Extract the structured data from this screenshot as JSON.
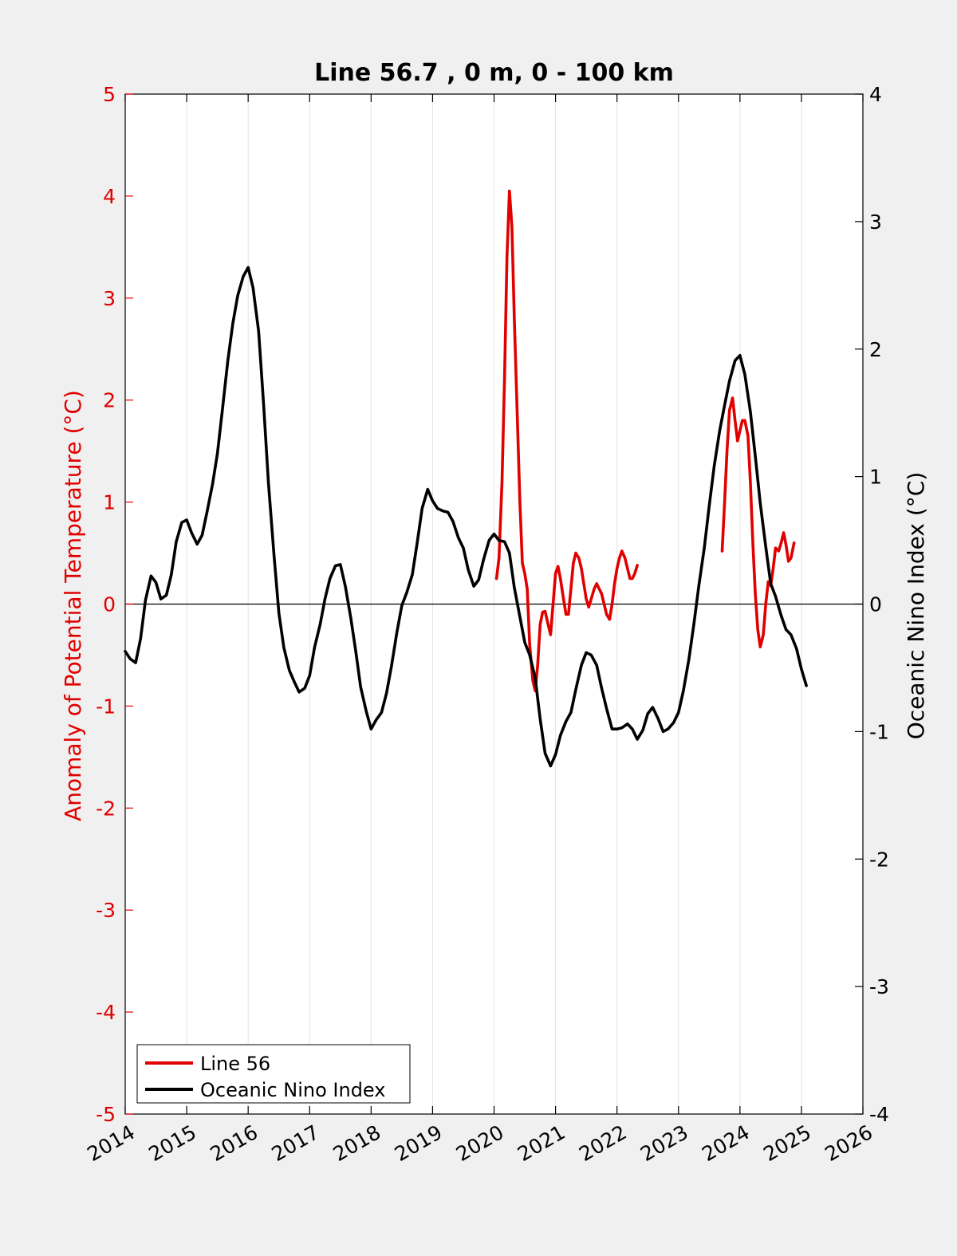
{
  "chart_data": {
    "type": "line",
    "title": "Line 56.7 , 0 m, 0 - 100 km",
    "xlim": [
      2014,
      2026
    ],
    "x_ticks": [
      "2014",
      "2015",
      "2016",
      "2017",
      "2018",
      "2019",
      "2020",
      "2021",
      "2022",
      "2023",
      "2024",
      "2025",
      "2026"
    ],
    "y_left": {
      "label": "Anomaly of Potential Temperature (°C)",
      "range": [
        -5,
        5
      ],
      "ticks": [
        "5",
        "4",
        "3",
        "2",
        "1",
        "0",
        "-1",
        "-2",
        "-3",
        "-4",
        "-5"
      ],
      "color": "#e00000"
    },
    "y_right": {
      "label": "Oceanic Nino Index (°C)",
      "range": [
        -4,
        4
      ],
      "ticks": [
        "4",
        "3",
        "2",
        "1",
        "0",
        "-1",
        "-2",
        "-3",
        "-4"
      ],
      "color": "#000000"
    },
    "grid": "vertical",
    "legend": {
      "position": "bottom-left",
      "entries": [
        {
          "name": "Line 56",
          "color": "#e00000"
        },
        {
          "name": "Oceanic Nino Index",
          "color": "#000000"
        }
      ]
    },
    "series": [
      {
        "name": "Line 56",
        "axis": "left",
        "color": "#e00000",
        "segments": [
          [
            [
              2020.04,
              0.25
            ],
            [
              2020.08,
              0.45
            ],
            [
              2020.13,
              1.2
            ],
            [
              2020.17,
              2.2
            ],
            [
              2020.21,
              3.4
            ],
            [
              2020.25,
              4.05
            ],
            [
              2020.29,
              3.7
            ],
            [
              2020.33,
              2.8
            ],
            [
              2020.38,
              1.8
            ],
            [
              2020.42,
              1.0
            ],
            [
              2020.46,
              0.4
            ],
            [
              2020.5,
              0.3
            ],
            [
              2020.54,
              0.15
            ],
            [
              2020.58,
              -0.4
            ],
            [
              2020.63,
              -0.75
            ],
            [
              2020.67,
              -0.85
            ],
            [
              2020.71,
              -0.6
            ],
            [
              2020.75,
              -0.2
            ],
            [
              2020.79,
              -0.08
            ],
            [
              2020.83,
              -0.07
            ],
            [
              2020.88,
              -0.2
            ],
            [
              2020.92,
              -0.3
            ],
            [
              2020.96,
              0.0
            ],
            [
              2021.0,
              0.3
            ],
            [
              2021.04,
              0.37
            ],
            [
              2021.08,
              0.25
            ],
            [
              2021.13,
              0.05
            ],
            [
              2021.17,
              -0.1
            ],
            [
              2021.21,
              -0.1
            ],
            [
              2021.25,
              0.15
            ],
            [
              2021.29,
              0.4
            ],
            [
              2021.33,
              0.5
            ],
            [
              2021.38,
              0.45
            ],
            [
              2021.42,
              0.35
            ],
            [
              2021.46,
              0.2
            ],
            [
              2021.5,
              0.05
            ],
            [
              2021.54,
              -0.03
            ],
            [
              2021.58,
              0.05
            ],
            [
              2021.63,
              0.15
            ],
            [
              2021.67,
              0.2
            ],
            [
              2021.71,
              0.15
            ],
            [
              2021.75,
              0.1
            ],
            [
              2021.79,
              0.0
            ],
            [
              2021.83,
              -0.1
            ],
            [
              2021.88,
              -0.15
            ],
            [
              2021.92,
              0.0
            ],
            [
              2021.96,
              0.2
            ],
            [
              2022.0,
              0.35
            ],
            [
              2022.04,
              0.45
            ],
            [
              2022.08,
              0.52
            ],
            [
              2022.13,
              0.45
            ],
            [
              2022.17,
              0.35
            ],
            [
              2022.21,
              0.25
            ],
            [
              2022.25,
              0.25
            ],
            [
              2022.29,
              0.3
            ],
            [
              2022.33,
              0.38
            ]
          ],
          [
            [
              2023.71,
              0.52
            ],
            [
              2023.75,
              1.0
            ],
            [
              2023.79,
              1.5
            ],
            [
              2023.83,
              1.9
            ],
            [
              2023.88,
              2.02
            ],
            [
              2023.92,
              1.8
            ],
            [
              2023.96,
              1.6
            ],
            [
              2024.0,
              1.7
            ],
            [
              2024.04,
              1.8
            ],
            [
              2024.08,
              1.8
            ],
            [
              2024.13,
              1.65
            ],
            [
              2024.17,
              1.2
            ],
            [
              2024.21,
              0.6
            ],
            [
              2024.25,
              0.1
            ],
            [
              2024.29,
              -0.25
            ],
            [
              2024.33,
              -0.42
            ],
            [
              2024.38,
              -0.3
            ],
            [
              2024.42,
              0.0
            ],
            [
              2024.46,
              0.22
            ],
            [
              2024.5,
              0.18
            ],
            [
              2024.54,
              0.35
            ],
            [
              2024.58,
              0.55
            ],
            [
              2024.63,
              0.52
            ],
            [
              2024.67,
              0.6
            ],
            [
              2024.71,
              0.7
            ],
            [
              2024.75,
              0.58
            ],
            [
              2024.79,
              0.42
            ],
            [
              2024.83,
              0.45
            ],
            [
              2024.88,
              0.6
            ]
          ]
        ]
      },
      {
        "name": "Oceanic Nino Index",
        "axis": "right",
        "color": "#000000",
        "segments": [
          [
            [
              2014.0,
              -0.37
            ],
            [
              2014.08,
              -0.43
            ],
            [
              2014.17,
              -0.46
            ],
            [
              2014.25,
              -0.27
            ],
            [
              2014.33,
              0.03
            ],
            [
              2014.42,
              0.22
            ],
            [
              2014.5,
              0.17
            ],
            [
              2014.58,
              0.04
            ],
            [
              2014.67,
              0.07
            ],
            [
              2014.75,
              0.23
            ],
            [
              2014.83,
              0.49
            ],
            [
              2014.92,
              0.64
            ],
            [
              2015.0,
              0.66
            ],
            [
              2015.08,
              0.56
            ],
            [
              2015.17,
              0.47
            ],
            [
              2015.25,
              0.54
            ],
            [
              2015.33,
              0.72
            ],
            [
              2015.42,
              0.94
            ],
            [
              2015.5,
              1.18
            ],
            [
              2015.58,
              1.52
            ],
            [
              2015.67,
              1.91
            ],
            [
              2015.75,
              2.2
            ],
            [
              2015.83,
              2.42
            ],
            [
              2015.92,
              2.57
            ],
            [
              2016.0,
              2.64
            ],
            [
              2016.08,
              2.48
            ],
            [
              2016.17,
              2.14
            ],
            [
              2016.25,
              1.58
            ],
            [
              2016.33,
              0.95
            ],
            [
              2016.42,
              0.39
            ],
            [
              2016.5,
              -0.07
            ],
            [
              2016.58,
              -0.34
            ],
            [
              2016.67,
              -0.52
            ],
            [
              2016.75,
              -0.61
            ],
            [
              2016.83,
              -0.69
            ],
            [
              2016.92,
              -0.66
            ],
            [
              2017.0,
              -0.56
            ],
            [
              2017.08,
              -0.34
            ],
            [
              2017.17,
              -0.16
            ],
            [
              2017.25,
              0.04
            ],
            [
              2017.33,
              0.2
            ],
            [
              2017.42,
              0.3
            ],
            [
              2017.5,
              0.31
            ],
            [
              2017.58,
              0.14
            ],
            [
              2017.67,
              -0.11
            ],
            [
              2017.75,
              -0.37
            ],
            [
              2017.83,
              -0.65
            ],
            [
              2017.92,
              -0.84
            ],
            [
              2018.0,
              -0.98
            ],
            [
              2018.08,
              -0.91
            ],
            [
              2018.17,
              -0.85
            ],
            [
              2018.25,
              -0.7
            ],
            [
              2018.33,
              -0.49
            ],
            [
              2018.42,
              -0.22
            ],
            [
              2018.5,
              -0.01
            ],
            [
              2018.58,
              0.09
            ],
            [
              2018.67,
              0.23
            ],
            [
              2018.75,
              0.48
            ],
            [
              2018.83,
              0.75
            ],
            [
              2018.92,
              0.9
            ],
            [
              2019.0,
              0.81
            ],
            [
              2019.08,
              0.75
            ],
            [
              2019.17,
              0.73
            ],
            [
              2019.25,
              0.72
            ],
            [
              2019.33,
              0.65
            ],
            [
              2019.42,
              0.52
            ],
            [
              2019.5,
              0.44
            ],
            [
              2019.58,
              0.27
            ],
            [
              2019.67,
              0.14
            ],
            [
              2019.75,
              0.19
            ],
            [
              2019.83,
              0.35
            ],
            [
              2019.92,
              0.5
            ],
            [
              2020.0,
              0.55
            ],
            [
              2020.08,
              0.5
            ],
            [
              2020.17,
              0.49
            ],
            [
              2020.25,
              0.4
            ],
            [
              2020.33,
              0.13
            ],
            [
              2020.42,
              -0.1
            ],
            [
              2020.5,
              -0.3
            ],
            [
              2020.58,
              -0.4
            ],
            [
              2020.67,
              -0.58
            ],
            [
              2020.75,
              -0.9
            ],
            [
              2020.83,
              -1.17
            ],
            [
              2020.92,
              -1.27
            ],
            [
              2021.0,
              -1.18
            ],
            [
              2021.08,
              -1.03
            ],
            [
              2021.17,
              -0.92
            ],
            [
              2021.25,
              -0.85
            ],
            [
              2021.33,
              -0.67
            ],
            [
              2021.42,
              -0.48
            ],
            [
              2021.5,
              -0.38
            ],
            [
              2021.58,
              -0.4
            ],
            [
              2021.67,
              -0.48
            ],
            [
              2021.75,
              -0.66
            ],
            [
              2021.83,
              -0.82
            ],
            [
              2021.92,
              -0.98
            ],
            [
              2022.0,
              -0.98
            ],
            [
              2022.08,
              -0.97
            ],
            [
              2022.17,
              -0.94
            ],
            [
              2022.25,
              -0.98
            ],
            [
              2022.33,
              -1.06
            ],
            [
              2022.42,
              -0.99
            ],
            [
              2022.5,
              -0.86
            ],
            [
              2022.58,
              -0.81
            ],
            [
              2022.67,
              -0.9
            ],
            [
              2022.75,
              -1.0
            ],
            [
              2022.83,
              -0.98
            ],
            [
              2022.92,
              -0.93
            ],
            [
              2023.0,
              -0.85
            ],
            [
              2023.08,
              -0.68
            ],
            [
              2023.17,
              -0.43
            ],
            [
              2023.25,
              -0.16
            ],
            [
              2023.33,
              0.14
            ],
            [
              2023.42,
              0.44
            ],
            [
              2023.5,
              0.77
            ],
            [
              2023.58,
              1.08
            ],
            [
              2023.67,
              1.36
            ],
            [
              2023.75,
              1.56
            ],
            [
              2023.83,
              1.75
            ],
            [
              2023.92,
              1.91
            ],
            [
              2024.0,
              1.95
            ],
            [
              2024.08,
              1.8
            ],
            [
              2024.17,
              1.51
            ],
            [
              2024.25,
              1.16
            ],
            [
              2024.33,
              0.79
            ],
            [
              2024.42,
              0.45
            ],
            [
              2024.5,
              0.16
            ],
            [
              2024.58,
              0.06
            ],
            [
              2024.67,
              -0.09
            ],
            [
              2024.75,
              -0.2
            ],
            [
              2024.83,
              -0.24
            ],
            [
              2024.92,
              -0.35
            ],
            [
              2025.0,
              -0.51
            ],
            [
              2025.08,
              -0.64
            ]
          ]
        ]
      }
    ]
  }
}
